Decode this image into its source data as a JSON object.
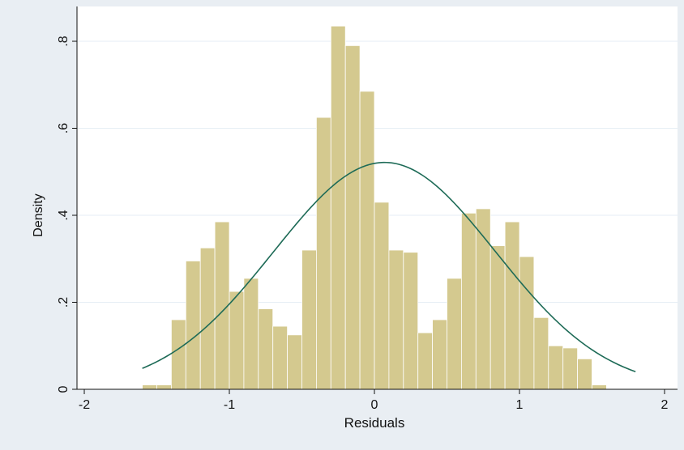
{
  "chart_data": {
    "type": "bar",
    "xlabel": "Residuals",
    "ylabel": "Density",
    "xlim": [
      -2,
      2
    ],
    "ylim": [
      0,
      0.8
    ],
    "x_ticks": [
      -2,
      -1,
      0,
      1,
      2
    ],
    "x_tick_labels": [
      "-2",
      "-1",
      "0",
      "1",
      "2"
    ],
    "y_ticks": [
      0,
      0.2,
      0.4,
      0.6,
      0.8
    ],
    "y_tick_labels": [
      "0",
      ".2",
      ".4",
      ".6",
      ".8"
    ],
    "grid": true,
    "bin_width": 0.1,
    "bins": [
      {
        "x0": -1.6,
        "value": 0.01
      },
      {
        "x0": -1.5,
        "value": 0.01
      },
      {
        "x0": -1.4,
        "value": 0.16
      },
      {
        "x0": -1.3,
        "value": 0.295
      },
      {
        "x0": -1.2,
        "value": 0.325
      },
      {
        "x0": -1.1,
        "value": 0.385
      },
      {
        "x0": -1.0,
        "value": 0.225
      },
      {
        "x0": -0.9,
        "value": 0.255
      },
      {
        "x0": -0.8,
        "value": 0.185
      },
      {
        "x0": -0.7,
        "value": 0.145
      },
      {
        "x0": -0.6,
        "value": 0.125
      },
      {
        "x0": -0.5,
        "value": 0.32
      },
      {
        "x0": -0.4,
        "value": 0.625
      },
      {
        "x0": -0.3,
        "value": 0.835
      },
      {
        "x0": -0.2,
        "value": 0.79
      },
      {
        "x0": -0.1,
        "value": 0.685
      },
      {
        "x0": 0.0,
        "value": 0.43
      },
      {
        "x0": 0.1,
        "value": 0.32
      },
      {
        "x0": 0.2,
        "value": 0.315
      },
      {
        "x0": 0.3,
        "value": 0.13
      },
      {
        "x0": 0.4,
        "value": 0.16
      },
      {
        "x0": 0.5,
        "value": 0.255
      },
      {
        "x0": 0.6,
        "value": 0.405
      },
      {
        "x0": 0.7,
        "value": 0.415
      },
      {
        "x0": 0.8,
        "value": 0.33
      },
      {
        "x0": 0.9,
        "value": 0.385
      },
      {
        "x0": 1.0,
        "value": 0.305
      },
      {
        "x0": 1.1,
        "value": 0.165
      },
      {
        "x0": 1.2,
        "value": 0.1
      },
      {
        "x0": 1.3,
        "value": 0.095
      },
      {
        "x0": 1.4,
        "value": 0.07
      },
      {
        "x0": 1.5,
        "value": 0.01
      }
    ],
    "normal_curve": {
      "mean": 0.07,
      "sd": 0.765,
      "x_range": [
        -1.6,
        1.8
      ]
    },
    "colors": {
      "outer_background": "#e9eef3",
      "plot_background": "#ffffff",
      "bar_fill": "#d4c98f",
      "bar_stroke": "#ffffff",
      "curve": "#1e6b57",
      "grid": "#e6eef4",
      "axis": "#111111"
    }
  }
}
